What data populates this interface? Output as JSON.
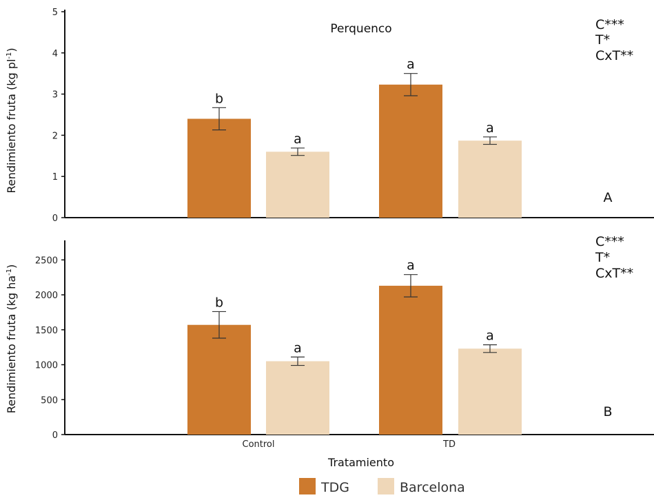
{
  "chart_data": [
    {
      "type": "bar",
      "panel_label": "A",
      "title": "Perquenco",
      "ylabel": "Rendimiento fruta (kg pl",
      "ylabel_sup": "-1",
      "ylabel_end": ")",
      "ylim": [
        0,
        5
      ],
      "yticks": [
        0,
        1,
        2,
        3,
        4,
        5
      ],
      "categories": [
        "Control",
        "TD"
      ],
      "series": [
        {
          "name": "TDG",
          "color": "#CD7A2E",
          "values": [
            2.4,
            3.23
          ],
          "errors": [
            0.27,
            0.27
          ],
          "letters": [
            "b",
            "a"
          ]
        },
        {
          "name": "Barcelona",
          "color": "#EFD7B8",
          "values": [
            1.6,
            1.87
          ],
          "errors": [
            0.09,
            0.09
          ],
          "letters": [
            "a",
            "a"
          ]
        }
      ],
      "significance": [
        "C***",
        "T*",
        "CxT**"
      ]
    },
    {
      "type": "bar",
      "panel_label": "B",
      "title": "",
      "ylabel": "Rendimiento fruta (kg ha",
      "ylabel_sup": "-1",
      "ylabel_end": ")",
      "ylim": [
        0,
        2750
      ],
      "yticks": [
        0,
        500,
        1000,
        1500,
        2000,
        2500
      ],
      "categories": [
        "Control",
        "TD"
      ],
      "series": [
        {
          "name": "TDG",
          "color": "#CD7A2E",
          "values": [
            1570,
            2130
          ],
          "errors": [
            190,
            160
          ],
          "letters": [
            "b",
            "a"
          ]
        },
        {
          "name": "Barcelona",
          "color": "#EFD7B8",
          "values": [
            1050,
            1230
          ],
          "errors": [
            60,
            55
          ],
          "letters": [
            "a",
            "a"
          ]
        }
      ],
      "significance": [
        "C***",
        "T*",
        "CxT**"
      ]
    }
  ],
  "xaxis": {
    "title": "Tratamiento",
    "categories": [
      "Control",
      "TD"
    ]
  },
  "legend": [
    {
      "name": "TDG",
      "color": "#CD7A2E"
    },
    {
      "name": "Barcelona",
      "color": "#EFD7B8"
    }
  ]
}
